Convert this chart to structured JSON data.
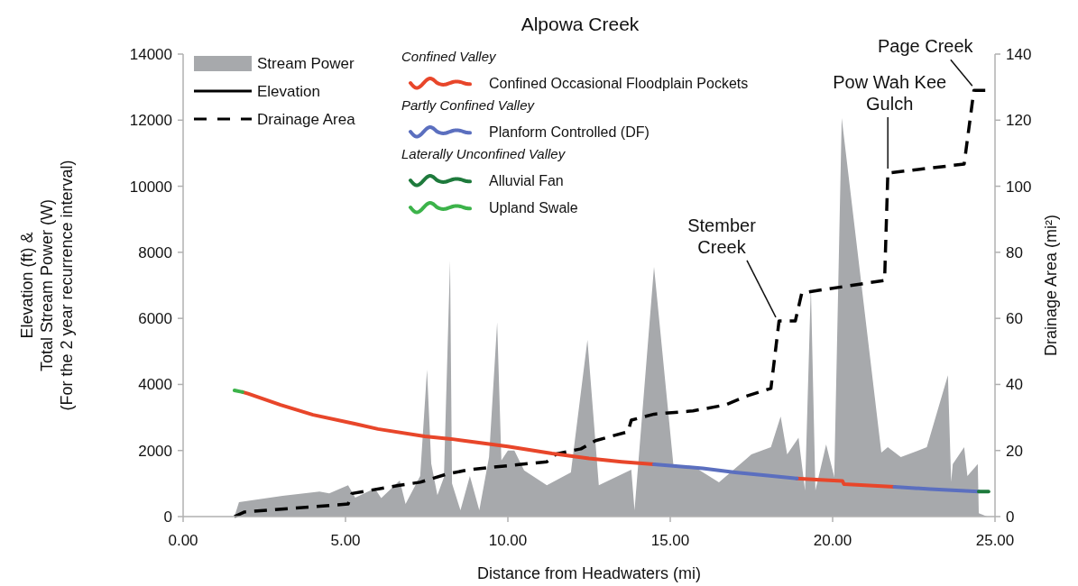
{
  "chart_data": {
    "type": "area",
    "title": "Alpowa Creek",
    "xlabel": "Distance from Headwaters (mi)",
    "ylabel": "Elevation (ft) &\nTotal Stream Power (W)\n(For the 2 year recurrence interval)",
    "y2label": "Drainage Area (mi²)",
    "xlim": [
      0,
      25
    ],
    "xticks": [
      {
        "value": 0,
        "label": "0.00"
      },
      {
        "value": 5,
        "label": "5.00"
      },
      {
        "value": 10,
        "label": "10.00"
      },
      {
        "value": 15,
        "label": "15.00"
      },
      {
        "value": 20,
        "label": "20.00"
      },
      {
        "value": 25,
        "label": "25.00"
      }
    ],
    "ylim": [
      0,
      14000
    ],
    "yticks": [
      0,
      2000,
      4000,
      6000,
      8000,
      10000,
      12000,
      14000
    ],
    "y2lim": [
      0,
      140
    ],
    "y2ticks": [
      0,
      20,
      40,
      60,
      80,
      100,
      120,
      140
    ],
    "grid": false,
    "legend": "top left",
    "series": [
      {
        "name": "Stream Power",
        "color": "#a7a9ac",
        "x": [
          1.58,
          1.72,
          3.06,
          4.2,
          4.5,
          5.08,
          5.3,
          5.9,
          6.1,
          6.67,
          6.85,
          7.3,
          7.51,
          7.64,
          7.83,
          8.03,
          8.22,
          8.28,
          8.54,
          8.83,
          9.12,
          9.42,
          9.67,
          9.8,
          10.0,
          10.2,
          10.5,
          11.2,
          11.94,
          12.45,
          12.8,
          13.8,
          13.9,
          14.5,
          15.1,
          15.7,
          16.5,
          17.5,
          18.1,
          18.4,
          18.6,
          18.95,
          19.15,
          19.33,
          19.47,
          19.8,
          20.05,
          20.28,
          21.5,
          21.7,
          22.1,
          22.9,
          23.55,
          23.65,
          23.7,
          24.05,
          24.15,
          24.47,
          24.5,
          24.76
        ],
        "values": [
          0,
          440,
          630,
          760,
          700,
          950,
          570,
          850,
          560,
          1090,
          380,
          1230,
          4450,
          1600,
          650,
          1190,
          7750,
          1000,
          190,
          1230,
          190,
          1800,
          5880,
          1700,
          2000,
          2000,
          1400,
          950,
          1340,
          5350,
          950,
          1420,
          190,
          7560,
          1530,
          1530,
          1040,
          1880,
          2100,
          3030,
          1880,
          2390,
          790,
          6960,
          790,
          2180,
          1200,
          12060,
          1940,
          2100,
          1800,
          2100,
          4280,
          1050,
          1590,
          2100,
          1230,
          1590,
          100,
          0
        ]
      },
      {
        "name": "Elevation",
        "type": "line",
        "color": "#000000",
        "line_style": "solid"
      },
      {
        "name": "Drainage Area",
        "type": "line",
        "axis": "y2",
        "color": "#000000",
        "line_style": "dashed",
        "x": [
          1.58,
          1.89,
          5.08,
          5.2,
          6.67,
          7.3,
          8.1,
          8.8,
          11.2,
          11.5,
          12.25,
          12.7,
          13.7,
          13.8,
          14.5,
          15.7,
          16.7,
          17.3,
          18.1,
          18.35,
          18.85,
          19.05,
          21.6,
          21.7,
          24.05,
          24.35,
          24.7
        ],
        "values": [
          0,
          1.4,
          3.8,
          7,
          9.5,
          10.4,
          12.8,
          14.2,
          16.6,
          19,
          20.5,
          23,
          25.7,
          29.2,
          31,
          32,
          33.8,
          36.3,
          38.8,
          59.2,
          59.2,
          67.7,
          71.5,
          104,
          106.7,
          129,
          129
        ]
      },
      {
        "name": "Confined Occasional Floodplain Pockets",
        "type": "line",
        "color": "#e8462a",
        "x": [
          1.83,
          2,
          3,
          4,
          5.28,
          6,
          7.44,
          8.25,
          9,
          10,
          11.36,
          12.5,
          13.5,
          14.5,
          16,
          18.9,
          19.5,
          20.3,
          20.35,
          21.9
        ],
        "values": [
          3770,
          3720,
          3380,
          3080,
          2810,
          2650,
          2430,
          2350,
          2250,
          2120,
          1910,
          1760,
          1660,
          1580,
          null,
          1150,
          1120,
          1080,
          980,
          900
        ]
      },
      {
        "name": "Planform Controlled (DF)",
        "type": "line",
        "color": "#5b6fbf",
        "x": [
          14.5,
          15,
          16,
          17,
          18,
          18.9,
          20,
          21.9,
          23,
          24.5
        ],
        "values": [
          1580,
          1540,
          1460,
          1340,
          1240,
          1150,
          null,
          900,
          830,
          760
        ]
      },
      {
        "name": "Alluvial Fan",
        "type": "line",
        "color": "#1e7a3c",
        "x": [
          24.5,
          24.8
        ],
        "values": [
          760,
          760
        ]
      },
      {
        "name": "Upland Swale",
        "type": "line",
        "color": "#3cb34a",
        "x": [
          1.58,
          1.83
        ],
        "values": [
          3820,
          3770
        ]
      }
    ],
    "annotations": [
      "Confined Valley",
      "Partly Confined Valley",
      "Laterally Unconfined Valley",
      {
        "text": "Stember\nCreek",
        "x": 18.25,
        "y": 5900
      },
      {
        "text": "Pow Wah Kee\nGulch",
        "x": 21.7,
        "y": 10400
      },
      {
        "text": "Page Creek",
        "x": 24.3,
        "y": 12900
      }
    ]
  }
}
